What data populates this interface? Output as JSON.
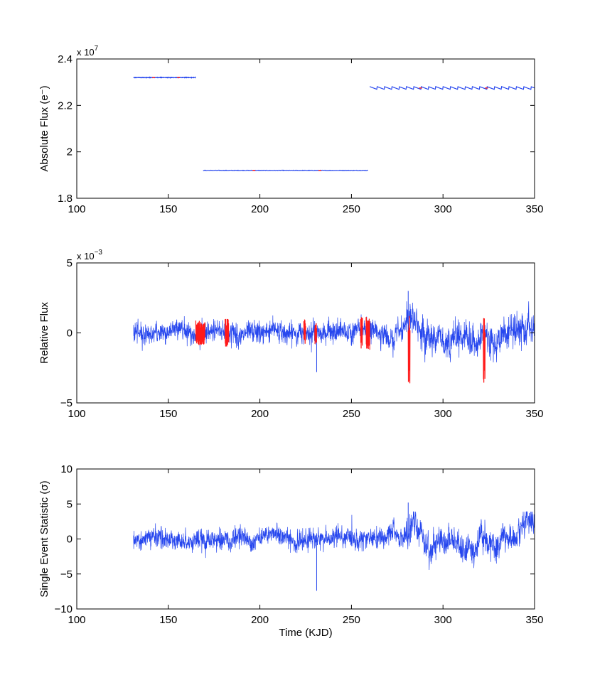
{
  "colors": {
    "series": "#2747ee",
    "highlight": "#ff1a1a",
    "axis": "#000000"
  },
  "chart_data": [
    {
      "type": "line",
      "ylabel": "Absolute Flux (e⁻)",
      "xlabel": "",
      "exponent": "x 10^7",
      "exponent_base": "x 10",
      "exponent_power": "7",
      "xlim": [
        100,
        350
      ],
      "ylim": [
        1.8,
        2.4
      ],
      "xticks": [
        100,
        150,
        200,
        250,
        300,
        350
      ],
      "xtick_labels": [
        "100",
        "150",
        "200",
        "250",
        "300",
        "350"
      ],
      "yticks": [
        1.8,
        2.0,
        2.2,
        2.4
      ],
      "ytick_labels": [
        "1.8",
        "2",
        "2.2",
        "2.4"
      ],
      "series": [
        {
          "x": [
            131,
            165
          ],
          "y": [
            2.32,
            2.32
          ]
        },
        {
          "x": [
            169,
            259
          ],
          "y": [
            1.92,
            1.92
          ]
        },
        {
          "x": [
            260,
            350
          ],
          "y": [
            2.275,
            2.275
          ],
          "oscillation_amplitude": 0.006,
          "oscillation_period_days": 4
        }
      ],
      "grid": false
    },
    {
      "type": "line",
      "ylabel": "Relative Flux",
      "xlabel": "",
      "exponent": "x 10^-3",
      "exponent_base": "x 10",
      "exponent_power": "−3",
      "xlim": [
        100,
        350
      ],
      "ylim": [
        -5,
        5
      ],
      "xticks": [
        100,
        150,
        200,
        250,
        300,
        350
      ],
      "xtick_labels": [
        "100",
        "150",
        "200",
        "250",
        "300",
        "350"
      ],
      "yticks": [
        -5,
        0,
        5
      ],
      "ytick_labels": [
        "−5",
        "0",
        "5"
      ],
      "noise": {
        "x_start": 131,
        "x_end": 350,
        "baseline": 0,
        "amplitude": 0.7,
        "max": 3.0,
        "min": -2.8
      },
      "highlights": [
        {
          "x_start": 165,
          "x_end": 170,
          "amplitude": 0.9
        },
        {
          "x_start": 181,
          "x_end": 183,
          "amplitude": 1.0
        },
        {
          "x_start": 224,
          "x_end": 225,
          "amplitude": 1.0
        },
        {
          "x_start": 230,
          "x_end": 231,
          "amplitude": 0.8
        },
        {
          "x_start": 255,
          "x_end": 256,
          "amplitude": 1.3
        },
        {
          "x_start": 258,
          "x_end": 260,
          "amplitude": 1.2
        },
        {
          "x_start": 281,
          "x_end": 282,
          "amplitude": 2.5
        },
        {
          "x_start": 322,
          "x_end": 323,
          "amplitude": 2.4
        }
      ],
      "grid": false
    },
    {
      "type": "line",
      "ylabel": "Single Event Statistic (σ)",
      "xlabel": "Time (KJD)",
      "xlim": [
        100,
        350
      ],
      "ylim": [
        -10,
        10
      ],
      "xticks": [
        100,
        150,
        200,
        250,
        300,
        350
      ],
      "xtick_labels": [
        "100",
        "150",
        "200",
        "250",
        "300",
        "350"
      ],
      "yticks": [
        -10,
        -5,
        0,
        5,
        10
      ],
      "ytick_labels": [
        "−10",
        "−5",
        "0",
        "5",
        "10"
      ],
      "noise": {
        "x_start": 131,
        "x_end": 350,
        "baseline": 0,
        "amplitude": 1.3,
        "max": 5.2,
        "min": -7.4
      },
      "grid": false
    }
  ]
}
